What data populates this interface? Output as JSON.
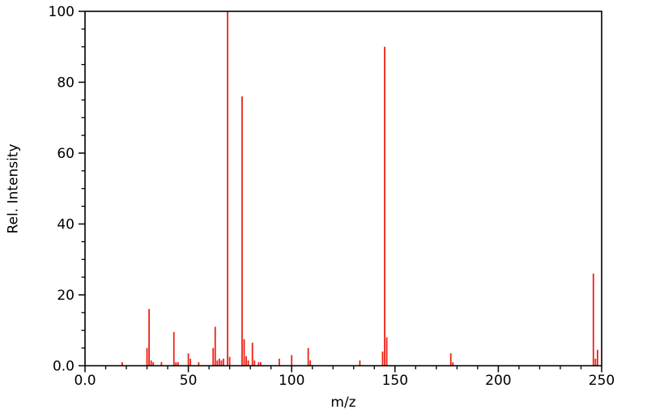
{
  "chart_data": {
    "type": "bar",
    "subtype": "mass-spectrum",
    "title": "",
    "xlabel": "m/z",
    "ylabel": "Rel. Intensity",
    "xlim": [
      0,
      250
    ],
    "ylim": [
      0,
      100
    ],
    "x_major_ticks": [
      0,
      50,
      100,
      150,
      200,
      250
    ],
    "x_tick_labels": [
      "0.0",
      "50",
      "100",
      "150",
      "200",
      "250"
    ],
    "x_minor_step": 10,
    "y_major_ticks": [
      0,
      20,
      40,
      60,
      80,
      100
    ],
    "y_tick_labels": [
      "0.0",
      "20",
      "40",
      "60",
      "80",
      "100"
    ],
    "y_minor_step": 5,
    "grid": false,
    "legend": false,
    "frame": true,
    "series_color": "#ee2116",
    "axis_color": "#000000",
    "peaks": [
      [
        18,
        1
      ],
      [
        30,
        5
      ],
      [
        31,
        16
      ],
      [
        32,
        1.5
      ],
      [
        33,
        1
      ],
      [
        37,
        1
      ],
      [
        43,
        9.5
      ],
      [
        44,
        1
      ],
      [
        45,
        1
      ],
      [
        50,
        3.5
      ],
      [
        51,
        2
      ],
      [
        55,
        1
      ],
      [
        62,
        5
      ],
      [
        63,
        11
      ],
      [
        64,
        1.5
      ],
      [
        65,
        2
      ],
      [
        66,
        1.5
      ],
      [
        67,
        2
      ],
      [
        69,
        100
      ],
      [
        70,
        2.5
      ],
      [
        76,
        76
      ],
      [
        77,
        7.5
      ],
      [
        78,
        2.7
      ],
      [
        79,
        1.5
      ],
      [
        81,
        6.5
      ],
      [
        82,
        1.5
      ],
      [
        84,
        1
      ],
      [
        85,
        1
      ],
      [
        94,
        2
      ],
      [
        100,
        3
      ],
      [
        108,
        5
      ],
      [
        109,
        1.5
      ],
      [
        133,
        1.5
      ],
      [
        144,
        4
      ],
      [
        145,
        90
      ],
      [
        146,
        8
      ],
      [
        177,
        3.5
      ],
      [
        178,
        1
      ],
      [
        246,
        26
      ],
      [
        247,
        2
      ],
      [
        248,
        4.5
      ]
    ]
  }
}
